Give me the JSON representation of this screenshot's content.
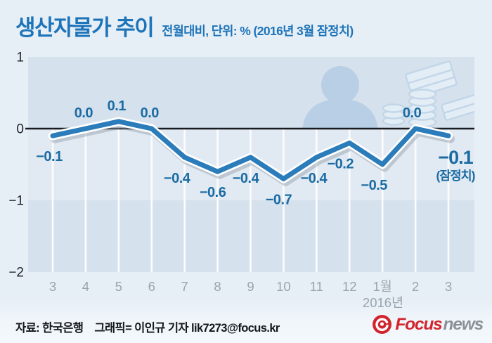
{
  "header": {
    "title": "생산자물가 추이",
    "subtitle": "전월대비, 단위: % (2016년 3월 잠정치)"
  },
  "chart_data": {
    "type": "line",
    "title": "생산자물가 추이",
    "subtitle": "전월대비, 단위: % (2016년 3월 잠정치)",
    "categories": [
      "3",
      "4",
      "5",
      "6",
      "7",
      "8",
      "9",
      "10",
      "11",
      "12",
      "1월",
      "2",
      "3"
    ],
    "values": [
      -0.1,
      0.0,
      0.1,
      0.0,
      -0.4,
      -0.6,
      -0.4,
      -0.7,
      -0.4,
      -0.2,
      -0.5,
      0.0,
      -0.1
    ],
    "value_labels": [
      "−0.1",
      "0.0",
      "0.1",
      "0.0",
      "−0.4",
      "−0.6",
      "−0.4",
      "−0.7",
      "−0.4",
      "−0.2",
      "−0.5",
      "0.0",
      "−0.1"
    ],
    "last_point_note": "(잠정치)",
    "x_axis_year_label": "2016년",
    "y_ticks": [
      1,
      0,
      -1,
      -2
    ],
    "y_tick_labels": [
      "1",
      "0",
      "−1",
      "−2"
    ],
    "ylim": [
      -2,
      1
    ],
    "grid": true,
    "legend": "none",
    "line_color": "#2b7cba",
    "label_color": "#1b6ba3",
    "band_dark_color": "#d5e1ed",
    "band_light_color": "#e1eaf3",
    "zero_line_color": "#171b20",
    "x_tick_color": "#9aa4ae",
    "y_tick_color": "#22262c"
  },
  "footer": {
    "source": "자료: 한국은행",
    "credit": "그래픽= 이인규 기자 lik7273@focus.kr",
    "logo_focus": "Focus",
    "logo_news": "news"
  }
}
